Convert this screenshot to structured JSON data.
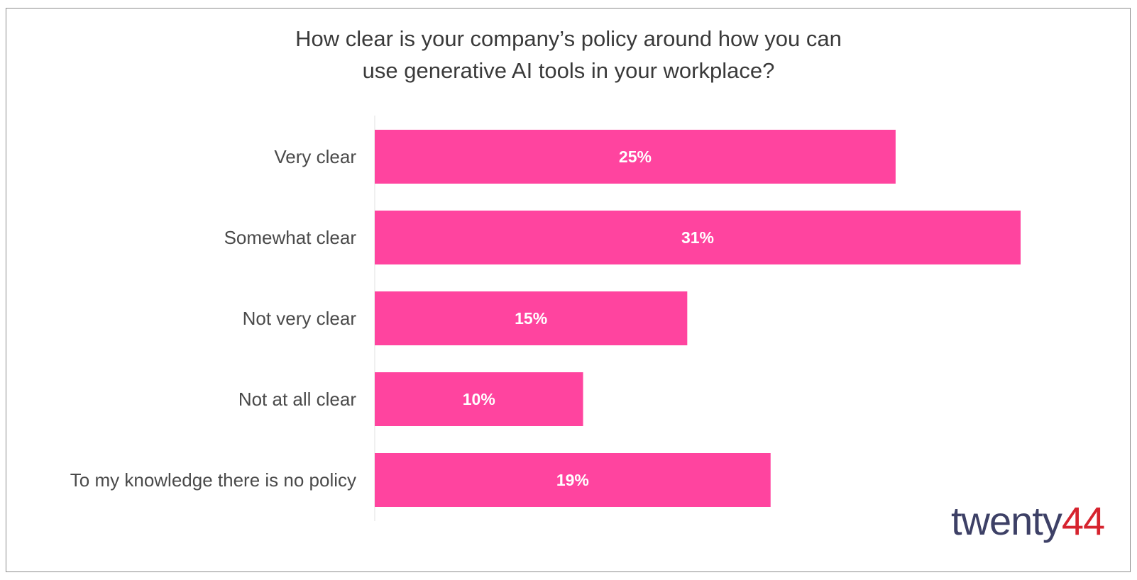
{
  "chart_data": {
    "type": "bar",
    "orientation": "horizontal",
    "title_lines": [
      "How clear is your company’s policy around how you can",
      "use generative AI tools in your workplace?"
    ],
    "categories": [
      "Very clear",
      "Somewhat clear",
      "Not very clear",
      "Not at all clear",
      "To my knowledge there is no policy"
    ],
    "values": [
      25,
      31,
      15,
      10,
      19
    ],
    "data_labels": [
      "25%",
      "31%",
      "15%",
      "10%",
      "19%"
    ],
    "value_unit": "%",
    "xlim": [
      0,
      31
    ],
    "bar_color": "#ff449f",
    "label_color": "#ffffff",
    "grid": false,
    "legend": "none"
  },
  "logo": {
    "text_main": "twenty",
    "text_mark": "44",
    "color_main": "#3d4066",
    "color_mark": "#d6232e"
  }
}
